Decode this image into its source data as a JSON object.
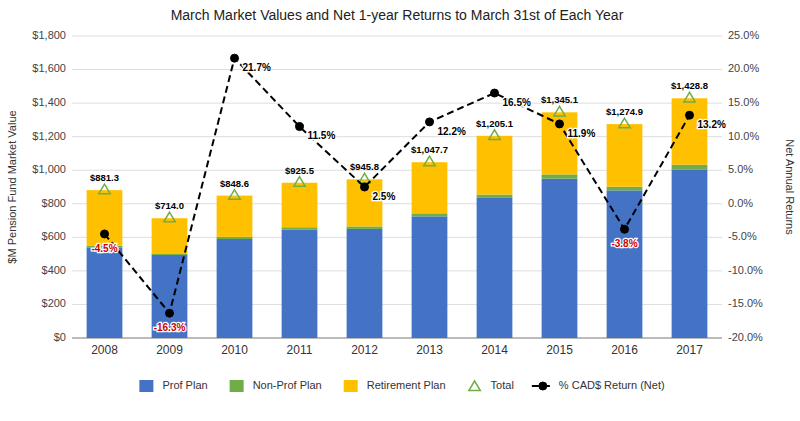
{
  "chart_data": {
    "type": "bar",
    "title": "March Market Values and Net 1-year Returns to March 31st of Each Year",
    "categories": [
      "2008",
      "2009",
      "2010",
      "2011",
      "2012",
      "2013",
      "2014",
      "2015",
      "2016",
      "2017"
    ],
    "stacked": true,
    "series": [
      {
        "name": "Prof Plan",
        "color": "#4472C4",
        "values": [
          540,
          495,
          590,
          645,
          650,
          725,
          835,
          950,
          880,
          1005
        ]
      },
      {
        "name": "Non-Prof Plan",
        "color": "#70AD47",
        "values": [
          10,
          9,
          13,
          15,
          15,
          18,
          20,
          25,
          22,
          28
        ]
      },
      {
        "name": "Retirement Plan",
        "color": "#FFC000",
        "values": [
          331.3,
          210,
          245.6,
          265.5,
          280.8,
          304.7,
          350.1,
          370.1,
          372.9,
          395.8
        ]
      },
      {
        "name": "Total",
        "type": "scatter",
        "marker": "triangle",
        "color": "#70AD47",
        "data_labels": true,
        "values": [
          881.3,
          714.0,
          848.6,
          925.5,
          945.8,
          1047.7,
          1205.1,
          1345.1,
          1274.9,
          1428.8
        ],
        "value_labels": [
          "$881.3",
          "$714.0",
          "$848.6",
          "$925.5",
          "$945.8",
          "$1,047.7",
          "$1,205.1",
          "$1,345.1",
          "$1,274.9",
          "$1,428.8"
        ]
      },
      {
        "name": "% CAD$ Return (Net)",
        "type": "line",
        "axis": "y2",
        "color": "#000000",
        "line_style": "dashed",
        "marker": "circle",
        "data_labels": true,
        "values": [
          -4.5,
          -16.3,
          21.7,
          11.5,
          2.5,
          12.2,
          16.5,
          11.9,
          -3.8,
          13.2
        ],
        "value_labels": [
          "-4.5%",
          "-16.3%",
          "21.7%",
          "11.5%",
          "2.5%",
          "12.2%",
          "16.5%",
          "11.9%",
          "-3.8%",
          "13.2%"
        ]
      }
    ],
    "ylabel": "$M Pension Fund Market Value",
    "y2label": "Net Annual Returns",
    "ylim": [
      0,
      1800
    ],
    "yticks": [
      {
        "value": 0,
        "label": "$0"
      },
      {
        "value": 200,
        "label": "$200"
      },
      {
        "value": 400,
        "label": "$400"
      },
      {
        "value": 600,
        "label": "$600"
      },
      {
        "value": 800,
        "label": "$800"
      },
      {
        "value": 1000,
        "label": "$1,000"
      },
      {
        "value": 1200,
        "label": "$1,200"
      },
      {
        "value": 1400,
        "label": "$1,400"
      },
      {
        "value": 1600,
        "label": "$1,600"
      },
      {
        "value": 1800,
        "label": "$1,800"
      }
    ],
    "y2lim": [
      -20.0,
      25.0
    ],
    "y2ticks": [
      {
        "value": -20.0,
        "label": "-20.0%"
      },
      {
        "value": -15.0,
        "label": "-15.0%"
      },
      {
        "value": -10.0,
        "label": "-10.0%"
      },
      {
        "value": -5.0,
        "label": "-5.0%"
      },
      {
        "value": 0.0,
        "label": "0.0%"
      },
      {
        "value": 5.0,
        "label": "5.0%"
      },
      {
        "value": 10.0,
        "label": "10.0%"
      },
      {
        "value": 15.0,
        "label": "15.0%"
      },
      {
        "value": 20.0,
        "label": "20.0%"
      },
      {
        "value": 25.0,
        "label": "25.0%"
      }
    ],
    "grid": true,
    "legend": "bottom"
  }
}
